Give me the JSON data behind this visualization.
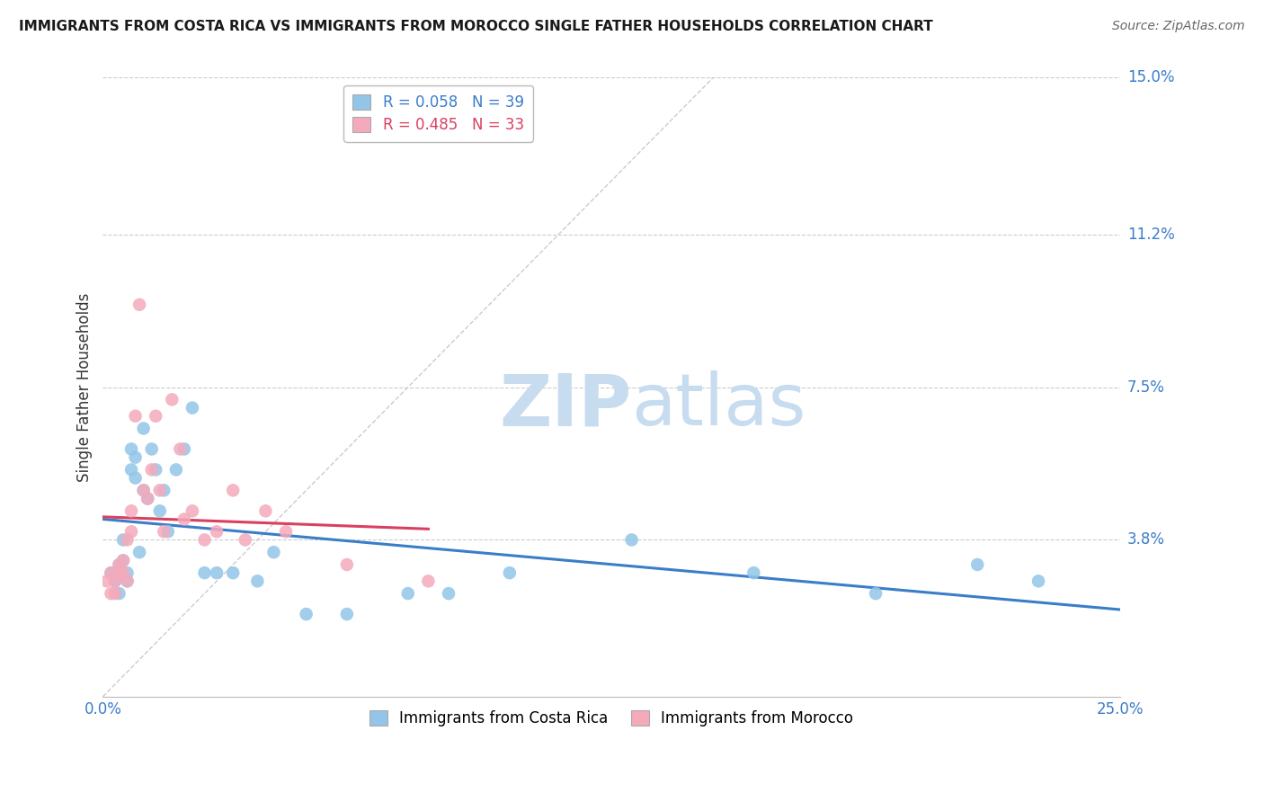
{
  "title": "IMMIGRANTS FROM COSTA RICA VS IMMIGRANTS FROM MOROCCO SINGLE FATHER HOUSEHOLDS CORRELATION CHART",
  "source": "Source: ZipAtlas.com",
  "ylabel": "Single Father Households",
  "xlim": [
    0.0,
    0.25
  ],
  "ylim": [
    0.0,
    0.15
  ],
  "yticks": [
    0.038,
    0.075,
    0.112,
    0.15
  ],
  "ytick_labels": [
    "3.8%",
    "7.5%",
    "11.2%",
    "15.0%"
  ],
  "legend1_label": "R = 0.058   N = 39",
  "legend2_label": "R = 0.485   N = 33",
  "legend1_color": "#92C5E8",
  "legend2_color": "#F4AABB",
  "line1_color": "#3A7DC9",
  "line2_color": "#D94060",
  "diagonal_color": "#CCCCCC",
  "watermark_zip": "ZIP",
  "watermark_atlas": "atlas",
  "watermark_color": "#C8DCF0",
  "background_color": "#FFFFFF",
  "grid_color": "#CCCCCC",
  "axis_label_color": "#3A7DC9",
  "title_color": "#1A1A1A",
  "source_color": "#666666",
  "ylabel_color": "#333333",
  "costa_rica_x": [
    0.002,
    0.003,
    0.004,
    0.004,
    0.005,
    0.005,
    0.006,
    0.006,
    0.007,
    0.007,
    0.008,
    0.008,
    0.009,
    0.01,
    0.01,
    0.011,
    0.012,
    0.013,
    0.014,
    0.015,
    0.016,
    0.018,
    0.02,
    0.022,
    0.025,
    0.028,
    0.032,
    0.038,
    0.042,
    0.05,
    0.06,
    0.075,
    0.085,
    0.1,
    0.13,
    0.16,
    0.19,
    0.215,
    0.23
  ],
  "costa_rica_y": [
    0.03,
    0.028,
    0.025,
    0.032,
    0.033,
    0.038,
    0.028,
    0.03,
    0.055,
    0.06,
    0.053,
    0.058,
    0.035,
    0.05,
    0.065,
    0.048,
    0.06,
    0.055,
    0.045,
    0.05,
    0.04,
    0.055,
    0.06,
    0.07,
    0.03,
    0.03,
    0.03,
    0.028,
    0.035,
    0.02,
    0.02,
    0.025,
    0.025,
    0.03,
    0.038,
    0.03,
    0.025,
    0.032,
    0.028
  ],
  "morocco_x": [
    0.001,
    0.002,
    0.002,
    0.003,
    0.003,
    0.004,
    0.004,
    0.005,
    0.005,
    0.006,
    0.006,
    0.007,
    0.007,
    0.008,
    0.009,
    0.01,
    0.011,
    0.012,
    0.013,
    0.014,
    0.015,
    0.017,
    0.019,
    0.02,
    0.022,
    0.025,
    0.028,
    0.032,
    0.035,
    0.04,
    0.045,
    0.06,
    0.08
  ],
  "morocco_y": [
    0.028,
    0.03,
    0.025,
    0.025,
    0.028,
    0.03,
    0.032,
    0.03,
    0.033,
    0.028,
    0.038,
    0.04,
    0.045,
    0.068,
    0.095,
    0.05,
    0.048,
    0.055,
    0.068,
    0.05,
    0.04,
    0.072,
    0.06,
    0.043,
    0.045,
    0.038,
    0.04,
    0.05,
    0.038,
    0.045,
    0.04,
    0.032,
    0.028
  ]
}
